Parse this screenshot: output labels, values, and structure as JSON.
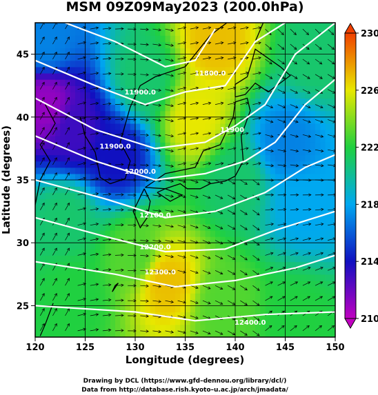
{
  "chart_data": {
    "type": "heatmap",
    "title": "MSM 09Z09May2023 (200.0hPa)",
    "xlabel": "Longitude (degrees)",
    "ylabel": "Latitude  (degrees)",
    "xlim": [
      120,
      150
    ],
    "ylim": [
      22.5,
      47.5
    ],
    "x_ticks": [
      120,
      125,
      130,
      135,
      140,
      145,
      150
    ],
    "y_ticks": [
      25,
      30,
      35,
      40,
      45
    ],
    "grid": true,
    "colorbar": {
      "range": [
        210,
        230
      ],
      "ticks": [
        210,
        214,
        218,
        222,
        226,
        230
      ],
      "colors": [
        "#c000c0",
        "#1010c0",
        "#00a8f0",
        "#20d040",
        "#e8e800",
        "#f04000"
      ]
    },
    "colors": {
      "contour": "#ffffff",
      "coast": "#000000",
      "vector": "#000000",
      "grid": "#000000"
    },
    "temperature_field": [
      {
        "lon": 121,
        "lat": 46,
        "value": 217
      },
      {
        "lon": 121,
        "lat": 41,
        "value": 211
      },
      {
        "lon": 124,
        "lat": 39,
        "value": 213
      },
      {
        "lon": 128,
        "lat": 37,
        "value": 214
      },
      {
        "lon": 123,
        "lat": 32,
        "value": 221
      },
      {
        "lon": 124,
        "lat": 26,
        "value": 222
      },
      {
        "lon": 130,
        "lat": 29,
        "value": 223
      },
      {
        "lon": 133,
        "lat": 27,
        "value": 227
      },
      {
        "lon": 131,
        "lat": 43,
        "value": 221
      },
      {
        "lon": 138,
        "lat": 46,
        "value": 227
      },
      {
        "lon": 136,
        "lat": 40,
        "value": 226
      },
      {
        "lon": 140,
        "lat": 35,
        "value": 221
      },
      {
        "lon": 145,
        "lat": 38,
        "value": 217
      },
      {
        "lon": 147,
        "lat": 33,
        "value": 218
      },
      {
        "lon": 148,
        "lat": 45,
        "value": 221
      },
      {
        "lon": 139,
        "lat": 25,
        "value": 223
      },
      {
        "lon": 146,
        "lat": 24,
        "value": 222
      }
    ],
    "contour_labels": [
      {
        "lon": 137.5,
        "lat": 43.3,
        "text": "11800.0"
      },
      {
        "lon": 130.5,
        "lat": 41.8,
        "text": "11900.0"
      },
      {
        "lon": 139.7,
        "lat": 38.8,
        "text": "11900"
      },
      {
        "lon": 128.0,
        "lat": 37.5,
        "text": "11900.0"
      },
      {
        "lon": 130.5,
        "lat": 35.5,
        "text": "12000.0"
      },
      {
        "lon": 132.0,
        "lat": 32.0,
        "text": "12100.0"
      },
      {
        "lon": 132.0,
        "lat": 29.5,
        "text": "12200.0"
      },
      {
        "lon": 132.5,
        "lat": 27.5,
        "text": "12300.0"
      },
      {
        "lon": 141.5,
        "lat": 23.5,
        "text": "12400.0"
      }
    ]
  },
  "credits": {
    "line1": "Drawing by DCL (https://www.gfd–dennou.org/library/dcl/)",
    "line2": "Data from http://database.rish.kyoto–u.ac.jp/arch/jmadata/"
  }
}
